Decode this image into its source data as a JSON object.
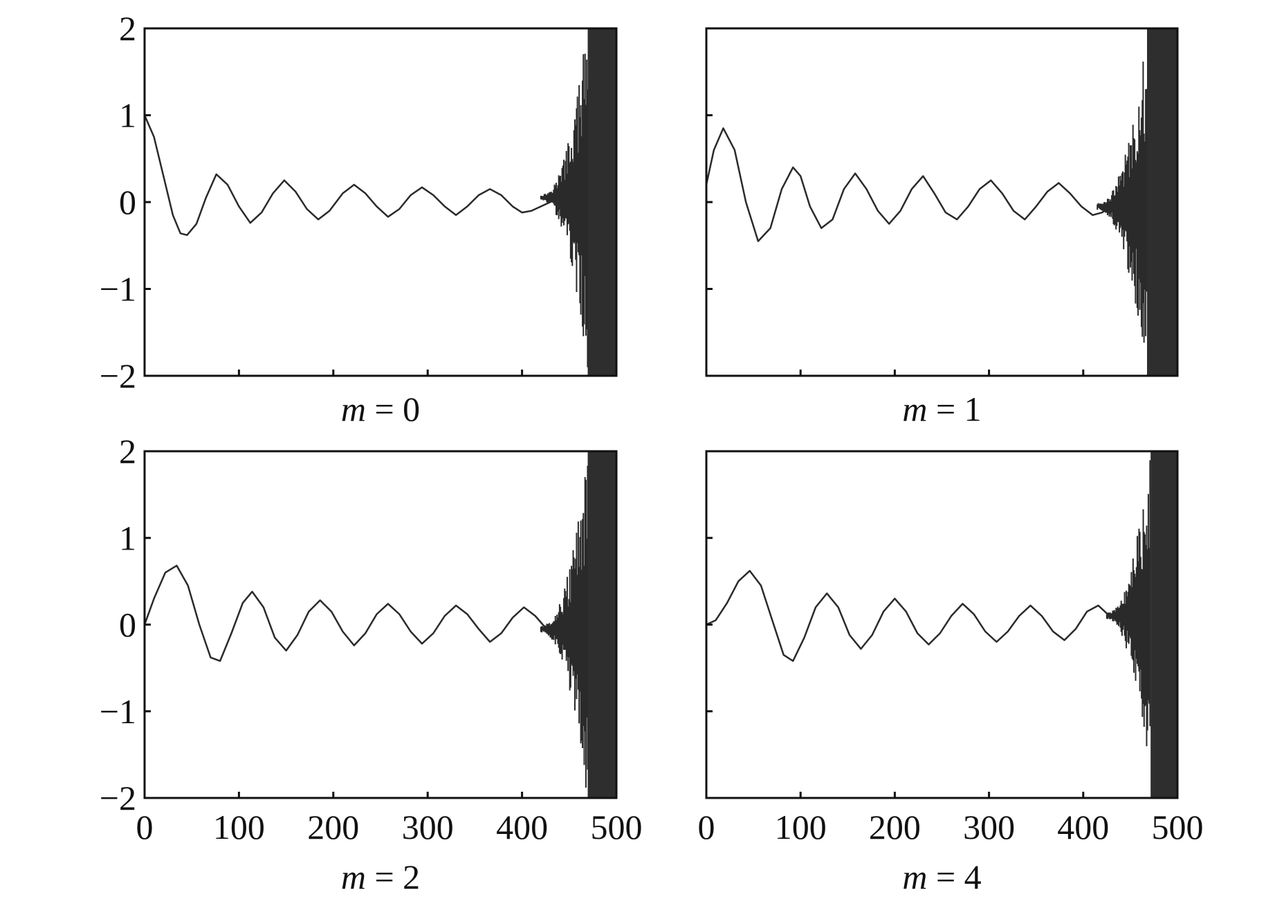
{
  "chart_data": [
    {
      "type": "line",
      "caption": {
        "var": "m",
        "rest": " = 0"
      },
      "xlim": [
        0,
        500
      ],
      "ylim": [
        -2,
        2
      ],
      "x_ticks": [
        0,
        100,
        200,
        300,
        400,
        500
      ],
      "y_ticks": [
        -2,
        -1,
        0,
        1,
        2
      ],
      "x_tick_labels_shown": false,
      "y_tick_labels_shown": true,
      "y_tick_labels": [
        "2",
        "1",
        "0",
        "−1",
        "−2"
      ],
      "x": [
        0,
        10,
        20,
        30,
        38,
        45,
        55,
        65,
        76,
        88,
        100,
        112,
        124,
        136,
        148,
        160,
        172,
        184,
        196,
        210,
        222,
        234,
        246,
        258,
        270,
        282,
        294,
        306,
        318,
        330,
        342,
        354,
        366,
        378,
        390,
        400,
        410,
        420,
        430,
        440
      ],
      "values": [
        1.0,
        0.75,
        0.3,
        -0.15,
        -0.36,
        -0.38,
        -0.25,
        0.05,
        0.32,
        0.2,
        -0.05,
        -0.24,
        -0.12,
        0.1,
        0.25,
        0.12,
        -0.08,
        -0.2,
        -0.1,
        0.1,
        0.2,
        0.1,
        -0.05,
        -0.17,
        -0.08,
        0.08,
        0.17,
        0.08,
        -0.05,
        -0.15,
        -0.05,
        0.08,
        0.15,
        0.08,
        -0.05,
        -0.12,
        -0.1,
        -0.05,
        0.0,
        0.05
      ],
      "noise_region": [
        420,
        500
      ]
    },
    {
      "type": "line",
      "caption": {
        "var": "m",
        "rest": " = 1"
      },
      "xlim": [
        0,
        500
      ],
      "ylim": [
        -2,
        2
      ],
      "x_ticks": [
        0,
        100,
        200,
        300,
        400,
        500
      ],
      "y_ticks": [
        -2,
        -1,
        0,
        1,
        2
      ],
      "x_tick_labels_shown": false,
      "y_tick_labels_shown": false,
      "x": [
        0,
        8,
        18,
        30,
        42,
        55,
        68,
        80,
        92,
        100,
        110,
        122,
        134,
        146,
        158,
        170,
        182,
        194,
        206,
        218,
        230,
        242,
        254,
        266,
        278,
        290,
        302,
        314,
        326,
        338,
        350,
        362,
        374,
        386,
        398,
        410,
        420,
        430
      ],
      "values": [
        0.2,
        0.6,
        0.85,
        0.6,
        0.0,
        -0.45,
        -0.3,
        0.15,
        0.4,
        0.3,
        -0.05,
        -0.3,
        -0.2,
        0.15,
        0.33,
        0.15,
        -0.1,
        -0.25,
        -0.1,
        0.15,
        0.3,
        0.1,
        -0.12,
        -0.2,
        -0.05,
        0.15,
        0.25,
        0.1,
        -0.1,
        -0.2,
        -0.05,
        0.12,
        0.22,
        0.1,
        -0.05,
        -0.15,
        -0.12,
        -0.05
      ],
      "noise_region": [
        415,
        500
      ]
    },
    {
      "type": "line",
      "caption": {
        "var": "m",
        "rest": " = 2"
      },
      "xlim": [
        0,
        500
      ],
      "ylim": [
        -2,
        2
      ],
      "x_ticks": [
        0,
        100,
        200,
        300,
        400,
        500
      ],
      "y_ticks": [
        -2,
        -1,
        0,
        1,
        2
      ],
      "x_tick_labels_shown": true,
      "y_tick_labels_shown": true,
      "x_tick_labels": [
        "0",
        "100",
        "200",
        "300",
        "400",
        "500"
      ],
      "y_tick_labels": [
        "2",
        "1",
        "0",
        "−1",
        "−2"
      ],
      "x": [
        0,
        10,
        22,
        34,
        46,
        58,
        70,
        80,
        92,
        104,
        114,
        126,
        138,
        150,
        162,
        174,
        186,
        198,
        210,
        222,
        234,
        246,
        258,
        270,
        282,
        294,
        306,
        318,
        330,
        342,
        354,
        366,
        378,
        390,
        402,
        414,
        426
      ],
      "values": [
        0.0,
        0.3,
        0.6,
        0.68,
        0.45,
        0.0,
        -0.38,
        -0.42,
        -0.1,
        0.25,
        0.38,
        0.2,
        -0.15,
        -0.3,
        -0.12,
        0.15,
        0.28,
        0.15,
        -0.08,
        -0.24,
        -0.1,
        0.12,
        0.24,
        0.12,
        -0.08,
        -0.22,
        -0.1,
        0.1,
        0.22,
        0.12,
        -0.05,
        -0.2,
        -0.1,
        0.08,
        0.2,
        0.1,
        -0.05
      ],
      "noise_region": [
        420,
        500
      ]
    },
    {
      "type": "line",
      "caption": {
        "var": "m",
        "rest": " = 4"
      },
      "xlim": [
        0,
        500
      ],
      "ylim": [
        -2,
        2
      ],
      "x_ticks": [
        0,
        100,
        200,
        300,
        400,
        500
      ],
      "y_ticks": [
        -2,
        -1,
        0,
        1,
        2
      ],
      "x_tick_labels_shown": true,
      "y_tick_labels_shown": false,
      "x_tick_labels": [
        "0",
        "100",
        "200",
        "300",
        "400",
        "500"
      ],
      "x": [
        0,
        10,
        22,
        34,
        46,
        58,
        70,
        82,
        92,
        104,
        116,
        128,
        140,
        152,
        164,
        176,
        188,
        200,
        212,
        224,
        236,
        248,
        260,
        272,
        284,
        296,
        308,
        320,
        332,
        344,
        356,
        368,
        380,
        392,
        404,
        416,
        428
      ],
      "values": [
        0.0,
        0.05,
        0.25,
        0.5,
        0.62,
        0.45,
        0.05,
        -0.35,
        -0.42,
        -0.15,
        0.2,
        0.36,
        0.2,
        -0.12,
        -0.28,
        -0.12,
        0.15,
        0.3,
        0.15,
        -0.1,
        -0.23,
        -0.1,
        0.1,
        0.24,
        0.12,
        -0.08,
        -0.2,
        -0.08,
        0.1,
        0.22,
        0.1,
        -0.08,
        -0.18,
        -0.05,
        0.15,
        0.22,
        0.1
      ],
      "noise_region": [
        425,
        500
      ]
    }
  ]
}
